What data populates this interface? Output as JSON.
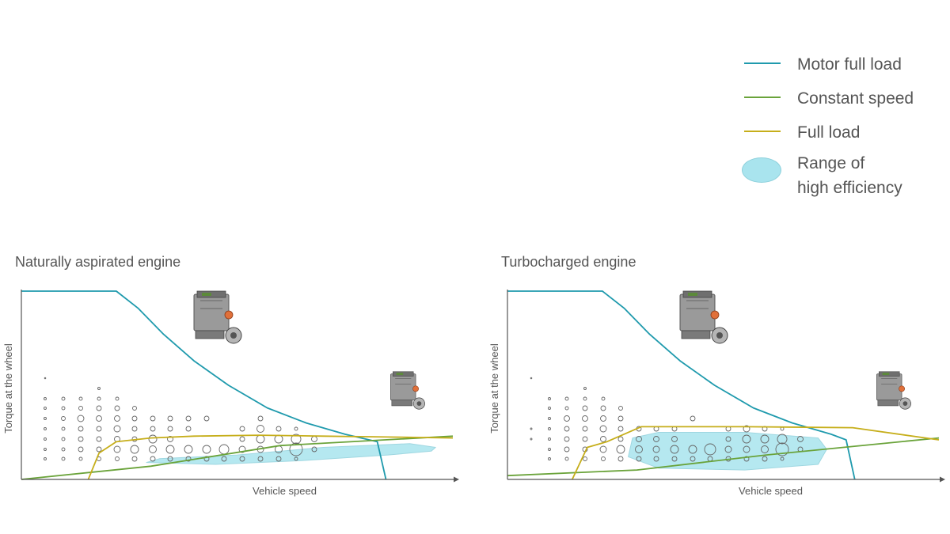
{
  "legend": {
    "items": [
      {
        "label": "Motor full load",
        "kind": "line",
        "color": "#1f9aad"
      },
      {
        "label": "Constant speed",
        "kind": "line",
        "color": "#6aa33a"
      },
      {
        "label": "Full load",
        "kind": "line",
        "color": "#c6ae1a"
      },
      {
        "label": "Range of\nhigh efficiency",
        "kind": "area",
        "color": "#a9e4ee"
      }
    ]
  },
  "colors": {
    "motor_full_load": "#1f9aad",
    "constant_speed": "#6aa33a",
    "full_load": "#c6ae1a",
    "high_efficiency": "#a9e4ee",
    "axis": "#555555"
  },
  "chart_data": [
    {
      "type": "line",
      "title": "Naturally aspirated engine",
      "xlabel": "Vehicle speed",
      "ylabel": "Torque at the wheel",
      "xlim": [
        0,
        100
      ],
      "ylim": [
        0,
        100
      ],
      "grid": false,
      "icon": "engine-icon",
      "series": [
        {
          "name": "Motor full load",
          "x": [
            0,
            22,
            27,
            33,
            40,
            48,
            57,
            66,
            75,
            82.5,
            84.5
          ],
          "y": [
            100,
            100,
            91,
            77,
            63,
            50,
            38,
            30,
            24,
            20,
            0
          ]
        },
        {
          "name": "Constant speed",
          "x": [
            0,
            30,
            60,
            100
          ],
          "y": [
            0,
            7,
            18,
            23
          ]
        },
        {
          "name": "Full load",
          "x": [
            15.5,
            18,
            22,
            30,
            40,
            55,
            70,
            85,
            100
          ],
          "y": [
            0,
            14,
            20,
            22,
            23,
            23.5,
            23,
            22.5,
            22
          ]
        },
        {
          "name": "Range of high efficiency",
          "kind": "area",
          "x": [
            29,
            45,
            65,
            85,
            95,
            96,
            90,
            70,
            50,
            32,
            29
          ],
          "y": [
            9,
            8,
            10,
            13,
            15,
            17,
            19,
            17,
            13,
            11,
            9
          ]
        }
      ],
      "operating_points": "bubble grid of measured operating points (size = time share)"
    },
    {
      "type": "line",
      "title": "Turbocharged engine",
      "xlabel": "Vehicle speed",
      "ylabel": "Torque at the wheel",
      "xlim": [
        0,
        100
      ],
      "ylim": [
        0,
        100
      ],
      "grid": false,
      "icon": "engine-icon",
      "series": [
        {
          "name": "Motor full load",
          "x": [
            0,
            22,
            27,
            33,
            40,
            48,
            57,
            66,
            75,
            78.5,
            80.5
          ],
          "y": [
            100,
            100,
            91,
            77,
            63,
            50,
            38,
            30,
            24,
            21,
            0
          ]
        },
        {
          "name": "Constant speed",
          "x": [
            0,
            30,
            60,
            100
          ],
          "y": [
            2,
            5,
            13,
            22
          ]
        },
        {
          "name": "Full load",
          "x": [
            15,
            18.5,
            23,
            31,
            55,
            80,
            100
          ],
          "y": [
            0,
            17,
            20,
            28,
            28,
            27.5,
            21
          ]
        },
        {
          "name": "Range of high efficiency",
          "kind": "area",
          "x": [
            28,
            35,
            55,
            72,
            74,
            72,
            55,
            35,
            29,
            28
          ],
          "y": [
            12,
            6,
            5,
            8,
            16,
            22,
            25,
            25,
            22,
            12
          ]
        }
      ],
      "operating_points": "bubble grid of measured operating points (size = time share)"
    }
  ]
}
